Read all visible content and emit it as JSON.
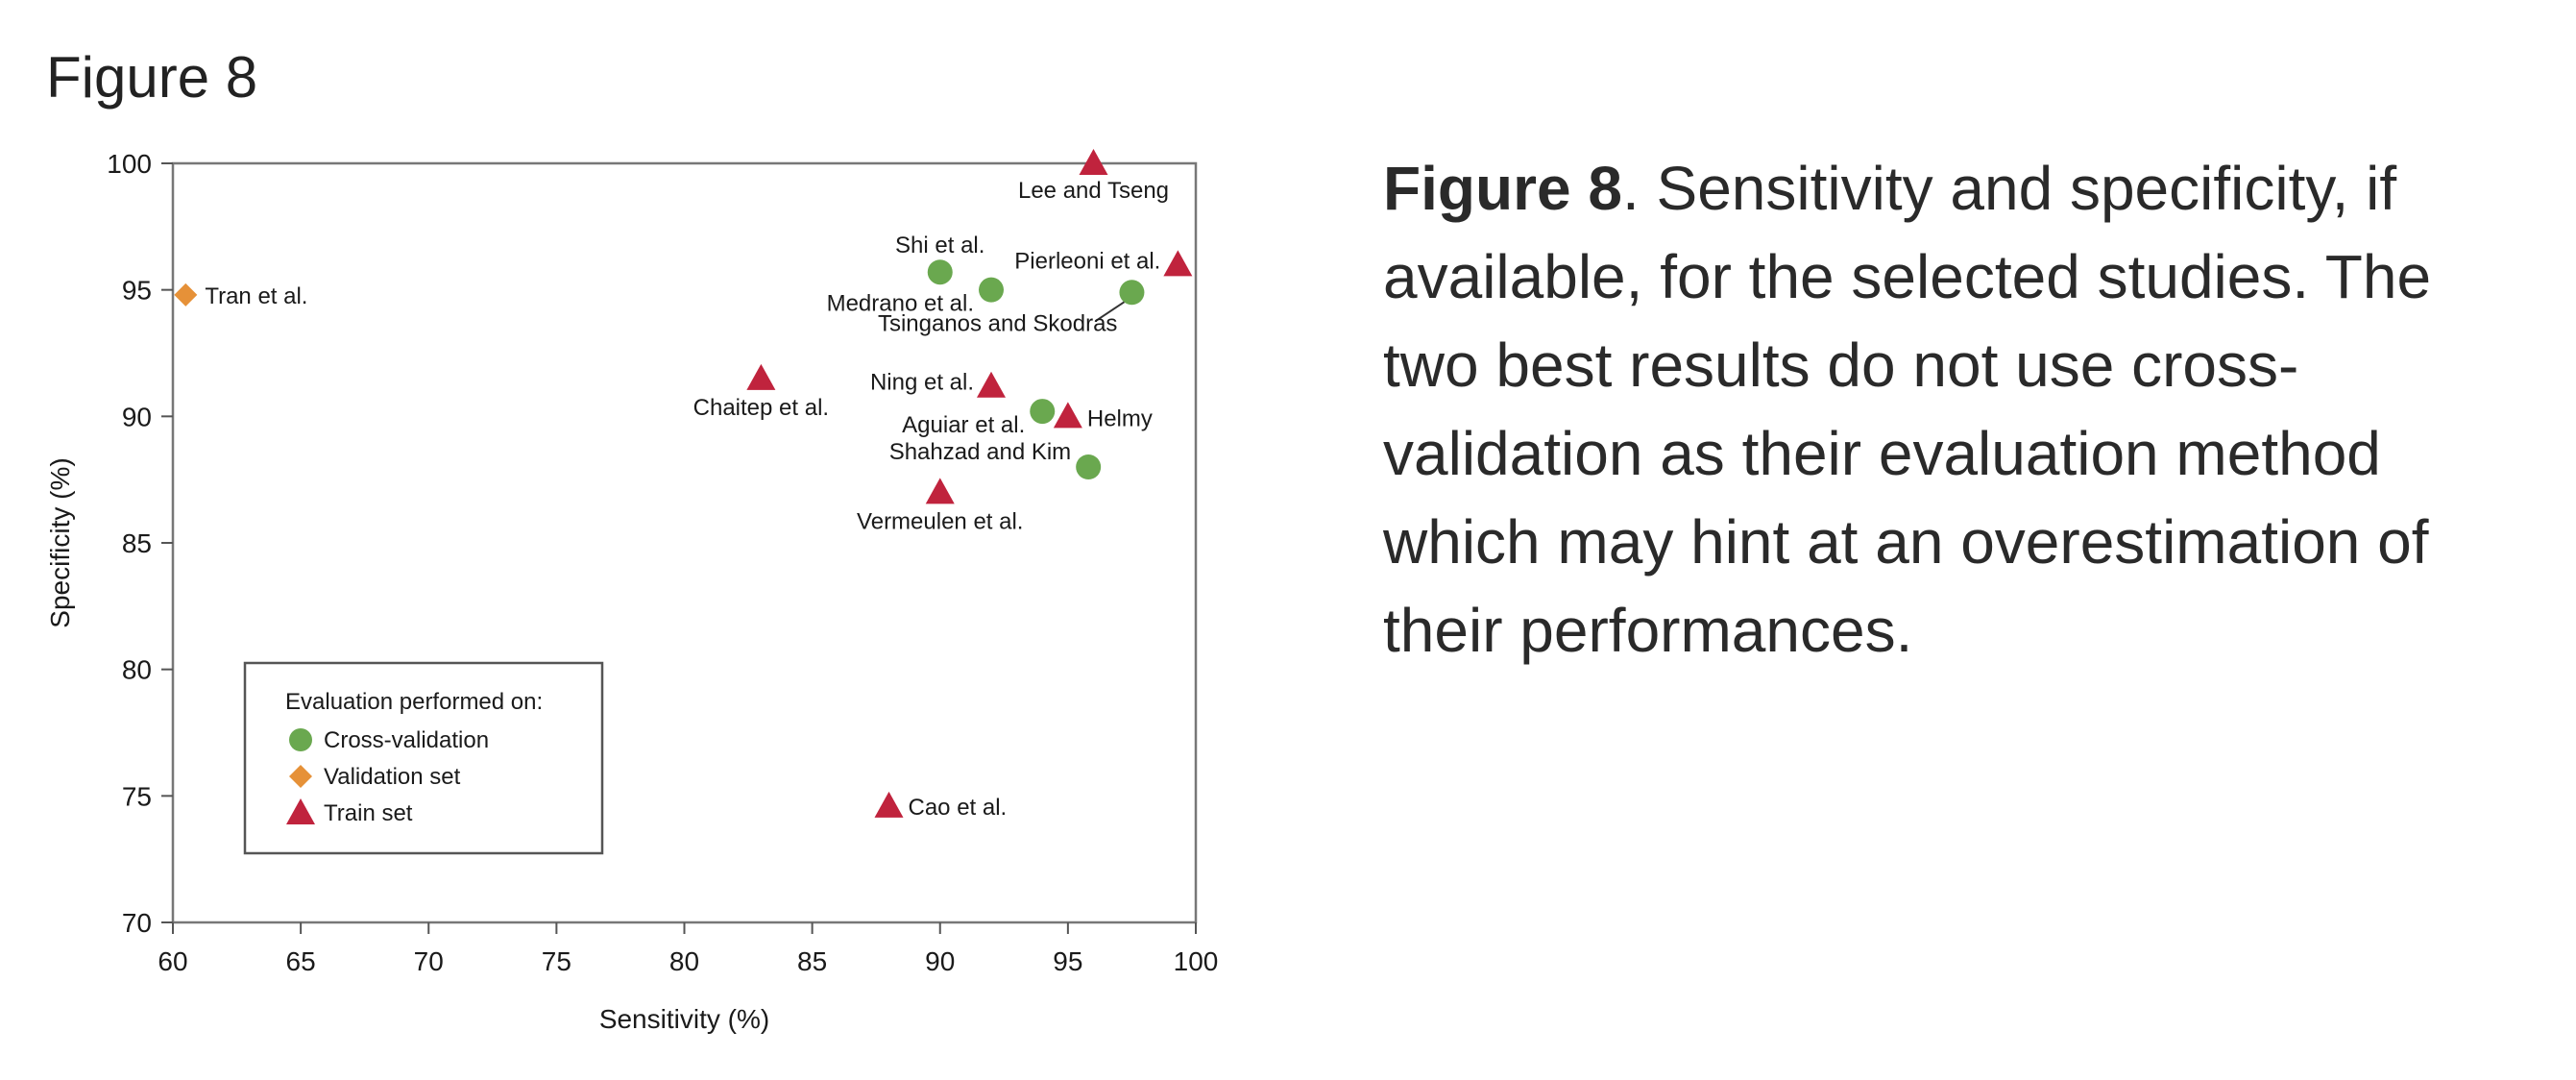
{
  "figure_heading": "Figure 8",
  "caption": {
    "label": "Figure 8",
    "text": ". Sensitivity and specificity, if available, for the selected studies. The two best results do not use cross-validation as their evaluation method which may hint at an overestimation of their performances."
  },
  "chart_data": {
    "type": "scatter",
    "xlabel": "Sensitivity (%)",
    "ylabel": "Specificity (%)",
    "xlim": [
      60,
      100
    ],
    "ylim": [
      70,
      100
    ],
    "xticks": [
      60,
      65,
      70,
      75,
      80,
      85,
      90,
      95,
      100
    ],
    "yticks": [
      70,
      75,
      80,
      85,
      90,
      95,
      100
    ],
    "grid": false,
    "legend": {
      "title": "Evaluation performed on:",
      "placement": "bottom-left",
      "entries": [
        {
          "label": "Cross-validation",
          "marker": "circle",
          "color": "#6aa84f"
        },
        {
          "label": "Validation set",
          "marker": "diamond",
          "color": "#e69138"
        },
        {
          "label": "Train set",
          "marker": "triangle",
          "color": "#c0233d"
        }
      ]
    },
    "series": [
      {
        "name": "Cross-validation",
        "marker": "circle",
        "color": "#6aa84f",
        "points": [
          {
            "label": "Shi et al.",
            "x": 90,
            "y": 95.7
          },
          {
            "label": "Medrano et al.",
            "x": 92,
            "y": 95
          },
          {
            "label": "Tsinganos and Skodras",
            "x": 97.5,
            "y": 94.9
          },
          {
            "label": "Aguiar et al.",
            "x": 94,
            "y": 90.2
          },
          {
            "label": "Shahzad and Kim",
            "x": 95.8,
            "y": 88
          }
        ]
      },
      {
        "name": "Validation set",
        "marker": "diamond",
        "color": "#e69138",
        "points": [
          {
            "label": "Tran et al.",
            "x": 60.5,
            "y": 94.8
          }
        ]
      },
      {
        "name": "Train set",
        "marker": "triangle",
        "color": "#c0233d",
        "points": [
          {
            "label": "Lee and Tseng",
            "x": 96,
            "y": 100
          },
          {
            "label": "Pierleoni et al.",
            "x": 99.3,
            "y": 96
          },
          {
            "label": "Chaitep et al.",
            "x": 83,
            "y": 91.5
          },
          {
            "label": "Ning et al.",
            "x": 92,
            "y": 91.2
          },
          {
            "label": "Helmy",
            "x": 95,
            "y": 90
          },
          {
            "label": "Vermeulen et al.",
            "x": 90,
            "y": 87
          },
          {
            "label": "Cao et al.",
            "x": 88,
            "y": 74.6
          }
        ]
      }
    ]
  }
}
